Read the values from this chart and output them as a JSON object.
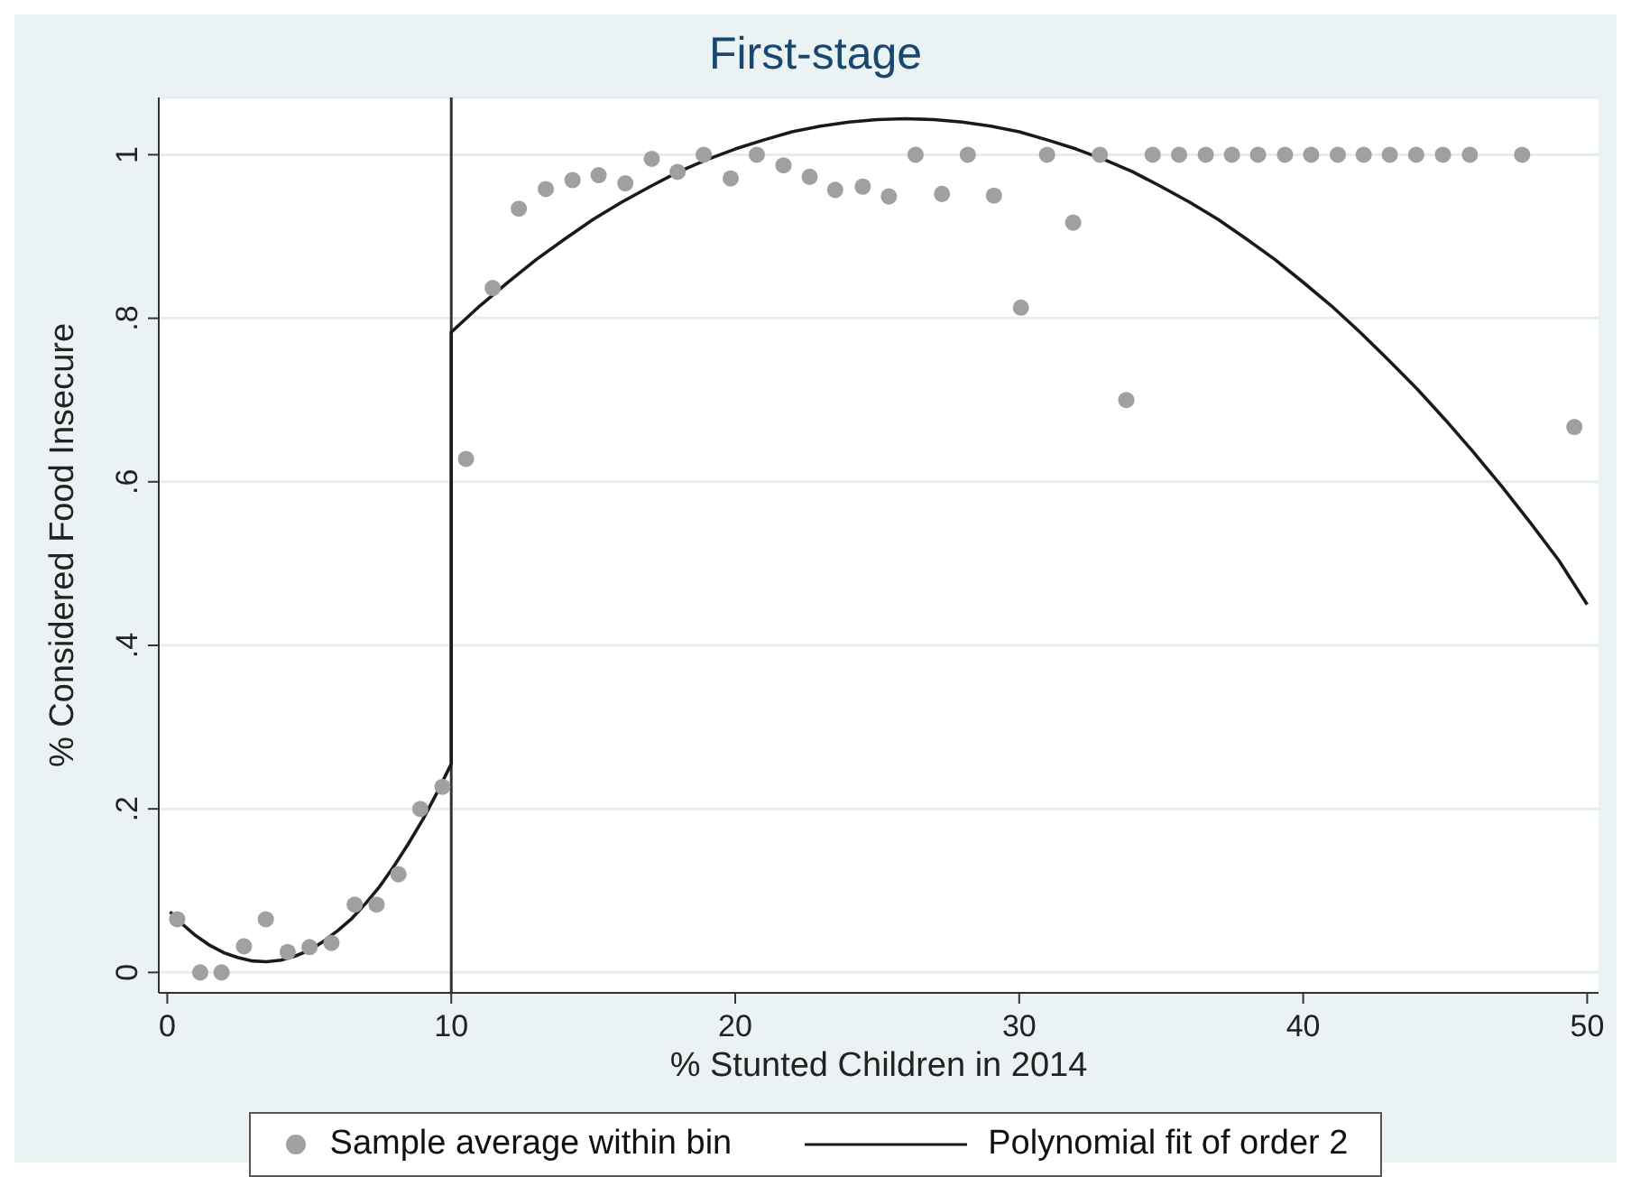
{
  "chart_data": {
    "type": "scatter",
    "title": "First-stage",
    "xlabel": "% Stunted Children in 2014",
    "ylabel": "% Considered Food Insecure",
    "xlim": [
      -0.3,
      50.4
    ],
    "ylim": [
      -0.025,
      1.07
    ],
    "xticks": [
      0,
      10,
      20,
      30,
      40,
      50
    ],
    "yticks": [
      {
        "value": 0,
        "label": "0"
      },
      {
        "value": 0.2,
        "label": ".2"
      },
      {
        "value": 0.4,
        "label": ".4"
      },
      {
        "value": 0.6,
        "label": ".6"
      },
      {
        "value": 0.8,
        "label": ".8"
      },
      {
        "value": 1,
        "label": "1"
      }
    ],
    "grid": "y",
    "legend": "bottom",
    "marker": "circle",
    "ref_lines": [
      {
        "axis": "x",
        "value": 10,
        "color": "#333333"
      }
    ],
    "series": [
      {
        "name": "Sample average within bin",
        "color": "#a0a0a0",
        "x": [
          0.35,
          1.16,
          1.91,
          2.7,
          3.47,
          4.24,
          5.01,
          5.78,
          6.6,
          7.37,
          8.14,
          8.91,
          9.69,
          10.52,
          11.46,
          12.38,
          13.33,
          14.27,
          15.19,
          16.13,
          17.06,
          17.97,
          18.89,
          19.84,
          20.76,
          21.7,
          22.62,
          23.52,
          24.49,
          25.41,
          26.35,
          27.28,
          28.19,
          29.11,
          30.06,
          30.98,
          31.9,
          32.84,
          33.77,
          34.7,
          35.63,
          36.57,
          37.49,
          38.41,
          39.36,
          40.28,
          41.22,
          42.13,
          43.05,
          43.98,
          44.92,
          45.87,
          47.71,
          49.55
        ],
        "values": [
          0.065,
          0,
          0,
          0.032,
          0.065,
          0.025,
          0.031,
          0.036,
          0.083,
          0.083,
          0.12,
          0.2,
          0.227,
          0.628,
          0.837,
          0.934,
          0.958,
          0.969,
          0.975,
          0.965,
          0.995,
          0.979,
          1,
          0.971,
          1,
          0.987,
          0.973,
          0.957,
          0.961,
          0.949,
          1,
          0.952,
          1,
          0.95,
          0.813,
          1,
          0.917,
          1,
          0.7,
          1,
          1,
          1,
          1,
          1,
          1,
          1,
          1,
          1,
          1,
          1,
          1,
          1,
          1,
          0.667
        ]
      },
      {
        "name": "Polynomial fit of order 2",
        "type": "line",
        "color": "#1a1a1a",
        "marker": "none",
        "x": [
          0.1,
          0.5,
          1,
          1.5,
          2,
          2.5,
          3,
          3.5,
          4,
          4.5,
          5,
          5.5,
          6,
          6.5,
          7,
          7.5,
          8,
          8.5,
          9,
          9.5,
          10,
          10,
          11,
          12,
          13,
          14,
          15,
          16,
          17,
          18,
          19,
          20,
          21,
          22,
          23,
          24,
          25,
          26,
          27,
          28,
          29,
          30,
          31,
          32,
          33,
          34,
          35,
          36,
          37,
          38,
          39,
          40,
          41,
          42,
          43,
          44,
          45,
          46,
          47,
          48,
          49,
          50
        ],
        "values": [
          0.074,
          0.06,
          0.045,
          0.033,
          0.024,
          0.018,
          0.014,
          0.013,
          0.015,
          0.02,
          0.027,
          0.038,
          0.051,
          0.066,
          0.085,
          0.106,
          0.131,
          0.158,
          0.187,
          0.22,
          0.255,
          0.783,
          0.815,
          0.844,
          0.872,
          0.897,
          0.921,
          0.942,
          0.961,
          0.979,
          0.994,
          1.007,
          1.018,
          1.028,
          1.035,
          1.04,
          1.043,
          1.044,
          1.043,
          1.04,
          1.035,
          1.028,
          1.018,
          1.007,
          0.994,
          0.979,
          0.961,
          0.942,
          0.921,
          0.897,
          0.872,
          0.844,
          0.815,
          0.783,
          0.749,
          0.714,
          0.676,
          0.636,
          0.594,
          0.55,
          0.504,
          0.45
        ]
      }
    ]
  }
}
